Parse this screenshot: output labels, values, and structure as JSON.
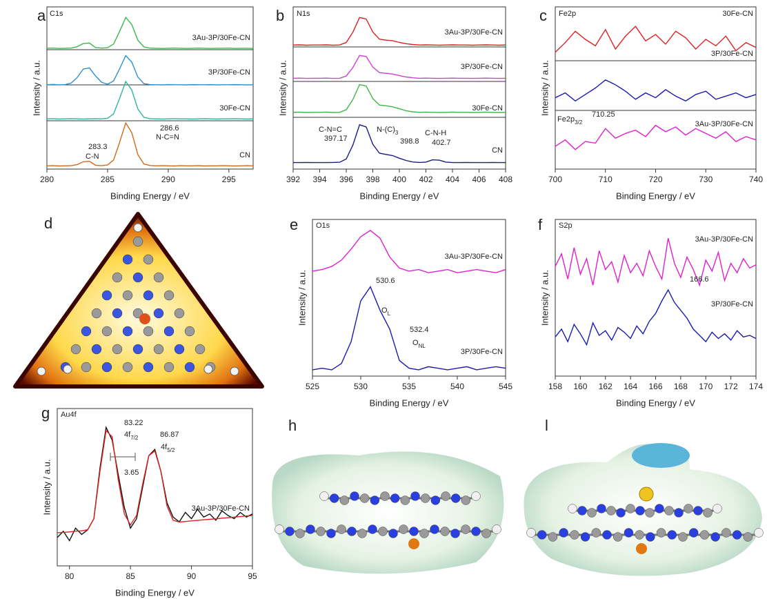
{
  "chart_data": [
    {
      "type": "line",
      "panel": "a",
      "xlabel": "Binding Energy / eV",
      "ylabel": "Intensity / a.u.",
      "x": [
        280,
        280.5,
        281,
        281.5,
        282,
        282.5,
        283,
        283.5,
        284,
        284.5,
        285,
        285.5,
        286,
        286.5,
        287,
        287.5,
        288,
        288.5,
        289,
        289.5,
        290,
        290.5,
        291,
        291.5,
        292,
        292.5,
        293,
        293.5,
        294,
        294.5,
        295,
        295.5,
        296,
        296.5,
        297
      ],
      "xlim": [
        280,
        297
      ],
      "xticks": [
        280,
        285,
        290,
        295
      ],
      "ylim": [
        0,
        100
      ],
      "series": [
        {
          "name": "3Au-3P/30Fe-CN",
          "color": "#3cb84a",
          "values": [
            74.5,
            74.6,
            74.4,
            74.5,
            74.6,
            75.5,
            77.4,
            77.7,
            75,
            74.6,
            74.8,
            77.1,
            85,
            93.5,
            89.1,
            79.4,
            75.3,
            74.6,
            74.5,
            74.4,
            74.5,
            74.6,
            74.5,
            74.4,
            74.5,
            74.6,
            74.5,
            74.4,
            74.5,
            74.5,
            74.6,
            74.4,
            74.5,
            74.5,
            74.4
          ]
        },
        {
          "name": "3P/30Fe-CN",
          "color": "#2a8fd6",
          "values": [
            52,
            52.2,
            51.9,
            52.1,
            53,
            56.5,
            61.7,
            62.4,
            57.5,
            53.6,
            52.3,
            54.4,
            61.9,
            70,
            65.9,
            56.7,
            52.7,
            52.1,
            52,
            51.9,
            52.1,
            52,
            52,
            51.9,
            52.1,
            52,
            52,
            52.1,
            51.9,
            52,
            52,
            52.1,
            52,
            51.9,
            52
          ]
        },
        {
          "name": "30Fe-CN",
          "color": "#2fb59a",
          "values": [
            31,
            31.1,
            30.9,
            31,
            31.1,
            31,
            30.9,
            31,
            31.1,
            31,
            31.3,
            34.1,
            43.7,
            54,
            48.7,
            37,
            31.9,
            31.1,
            31,
            30.9,
            31,
            31.1,
            31,
            31,
            30.9,
            31,
            31.1,
            31,
            30.9,
            31,
            31,
            31.1,
            31,
            30.9,
            31
          ]
        },
        {
          "name": "CN",
          "color": "#d2691e",
          "values": [
            2,
            2.1,
            1.9,
            2,
            2.1,
            2.8,
            4.5,
            4.8,
            2.4,
            2.1,
            2.5,
            5.6,
            16.6,
            28.5,
            22.4,
            8.9,
            3.1,
            2.2,
            2,
            2.1,
            2,
            1.9,
            2.1,
            2,
            2,
            2.1,
            1.9,
            2,
            2,
            2.1,
            2,
            1.9,
            2,
            2.1,
            2
          ]
        }
      ],
      "annotations": [
        "C1s",
        "286.6",
        "N-C=N",
        "283.3",
        "C-N"
      ]
    },
    {
      "type": "line",
      "panel": "b",
      "xlabel": "Binding Energy / eV",
      "ylabel": "Intensity / a.u.",
      "x": [
        392,
        392.5,
        393,
        393.5,
        394,
        394.5,
        395,
        395.5,
        396,
        396.5,
        397,
        397.5,
        398,
        398.5,
        399,
        399.5,
        400,
        400.5,
        401,
        401.5,
        402,
        402.5,
        403,
        403.5,
        404,
        404.5,
        405,
        405.5,
        406,
        406.5,
        407,
        407.5,
        408
      ],
      "xlim": [
        392,
        408
      ],
      "xticks": [
        392,
        394,
        396,
        398,
        400,
        402,
        404,
        406,
        408
      ],
      "ylim": [
        0,
        100
      ],
      "series": [
        {
          "name": "3Au-3P/30Fe-CN",
          "color": "#e02020",
          "values": [
            76.5,
            76.6,
            76.4,
            76.5,
            76.5,
            76.6,
            76.4,
            76.5,
            78.1,
            84.4,
            93.5,
            92.5,
            84.5,
            80.1,
            79.5,
            79.1,
            78.1,
            77.3,
            76.8,
            76.5,
            76.6,
            76.5,
            76.4,
            76.5,
            76.6,
            76.5,
            76.5,
            76.4,
            76.5,
            76.6,
            76.5,
            76.4,
            76.5
          ]
        },
        {
          "name": "3P/30Fe-CN",
          "color": "#d040d0",
          "values": [
            56,
            56.1,
            55.9,
            56,
            56,
            56.1,
            55.9,
            56,
            57.4,
            62.6,
            70.1,
            69.4,
            62.9,
            59.5,
            59,
            58.6,
            57.6,
            56.8,
            56.3,
            56,
            56.1,
            56,
            55.9,
            56,
            56.1,
            56,
            56,
            55.9,
            56,
            56.1,
            56,
            55.9,
            56
          ]
        },
        {
          "name": "30Fe-CN",
          "color": "#3cb84a",
          "values": [
            35,
            35.1,
            34.9,
            35,
            35,
            35.1,
            34.9,
            35,
            36.6,
            42.9,
            52.1,
            51.2,
            43.5,
            39.5,
            39,
            38.4,
            37.2,
            36,
            35.3,
            35,
            35.1,
            35,
            34.9,
            35,
            35.1,
            35,
            35,
            34.9,
            35,
            35.1,
            35,
            34.9,
            35
          ]
        },
        {
          "name": "CN",
          "color": "#1a1a8c",
          "values": [
            4,
            4,
            4.1,
            4,
            4,
            4,
            4.1,
            4.2,
            6.2,
            14.8,
            27.3,
            26,
            15.3,
            9.8,
            9,
            8.3,
            6.7,
            5.3,
            4.4,
            4.1,
            4.3,
            5.7,
            5.5,
            4.3,
            4,
            4,
            4.1,
            4,
            4,
            4,
            4.1,
            4,
            4
          ]
        }
      ],
      "annotations": [
        "N1s",
        "C-N=C",
        "397.17",
        {
          "text": "N-(C)",
          "sub": "3"
        },
        "398.8",
        "C-N-H",
        "402.7"
      ]
    },
    {
      "type": "line",
      "panel": "c",
      "xlabel": "Binding Energy / eV",
      "ylabel": "Intensity / a.u.",
      "x": [
        700,
        702,
        704,
        706,
        708,
        710,
        712,
        714,
        716,
        718,
        720,
        722,
        724,
        726,
        728,
        730,
        732,
        734,
        736,
        738,
        740
      ],
      "xlim": [
        700,
        740
      ],
      "xticks": [
        700,
        710,
        720,
        730,
        740
      ],
      "ylim": [
        0,
        100
      ],
      "series": [
        {
          "name": "30Fe-CN",
          "color": "#e02020",
          "values": [
            72,
            78,
            85,
            80,
            76,
            86,
            74,
            82,
            88,
            79,
            83,
            77,
            85,
            81,
            74,
            80,
            76,
            82,
            73,
            78,
            75
          ]
        },
        {
          "name": "3P/30Fe-CN",
          "color": "#1a1ab0",
          "values": [
            44,
            47,
            42,
            46,
            50,
            55,
            52,
            48,
            43,
            47,
            44,
            49,
            45,
            42,
            46,
            48,
            43,
            45,
            47,
            44,
            46
          ]
        },
        {
          "name": "3Au-3P/30Fe-CN",
          "color": "#e020d0",
          "values": [
            14,
            18,
            12,
            17,
            16,
            25,
            19,
            22,
            24,
            20,
            27,
            23,
            26,
            21,
            25,
            22,
            19,
            23,
            17,
            20,
            18
          ]
        }
      ],
      "annotations": [
        "Fe2p",
        {
          "text": "Fe2p",
          "sub": "3/2"
        },
        "710.25"
      ]
    },
    {
      "type": "line",
      "panel": "e",
      "xlabel": "Binding Energy / eV",
      "ylabel": "Intensity / a.u.",
      "x": [
        525,
        526,
        527,
        528,
        529,
        530,
        531,
        532,
        533,
        534,
        535,
        536,
        537,
        538,
        539,
        540,
        541,
        542,
        543,
        544,
        545
      ],
      "xlim": [
        525,
        545
      ],
      "xticks": [
        525,
        530,
        535,
        540,
        545
      ],
      "ylim": [
        0,
        100
      ],
      "series": [
        {
          "name": "3Au-3P/30Fe-CN",
          "color": "#e020d0",
          "values": [
            67,
            68,
            70,
            74,
            81,
            89,
            93,
            88,
            76,
            69,
            67,
            68,
            66,
            67,
            68,
            66,
            67,
            68,
            67,
            66,
            68
          ]
        },
        {
          "name": "3P/30Fe-CN",
          "color": "#1a1ab0",
          "values": [
            4,
            5,
            4,
            8,
            22,
            48,
            57,
            42,
            30,
            10,
            5,
            4,
            6,
            5,
            4,
            5,
            6,
            4,
            5,
            6,
            5
          ]
        }
      ],
      "annotations": [
        "O1s",
        "530.6",
        {
          "text": "O",
          "sub": "L"
        },
        "532.4",
        {
          "text": "O",
          "sub": "NL"
        }
      ]
    },
    {
      "type": "line",
      "panel": "f",
      "xlabel": "Binding Energy / eV",
      "ylabel": "Intensity / a.u.",
      "x": [
        158,
        158.5,
        159,
        159.5,
        160,
        160.5,
        161,
        161.5,
        162,
        162.5,
        163,
        163.5,
        164,
        164.5,
        165,
        165.5,
        166,
        166.5,
        167,
        167.5,
        168,
        168.5,
        169,
        169.5,
        170,
        170.5,
        171,
        171.5,
        172,
        172.5,
        173,
        173.5,
        174
      ],
      "xlim": [
        158,
        174
      ],
      "xticks": [
        158,
        160,
        162,
        164,
        166,
        168,
        170,
        172,
        174
      ],
      "ylim": [
        0,
        100
      ],
      "series": [
        {
          "name": "3Au-3P/30Fe-CN",
          "color": "#e020d0",
          "values": [
            70,
            78,
            62,
            82,
            65,
            75,
            58,
            80,
            68,
            73,
            60,
            77,
            66,
            72,
            64,
            80,
            70,
            62,
            88,
            72,
            63,
            76,
            68,
            58,
            74,
            67,
            79,
            61,
            72,
            66,
            75,
            69,
            71
          ]
        },
        {
          "name": "3P/30Fe-CN",
          "color": "#1a1ab0",
          "values": [
            25,
            30,
            22,
            33,
            27,
            20,
            34,
            26,
            29,
            23,
            31,
            28,
            24,
            32,
            27,
            35,
            40,
            48,
            55,
            47,
            42,
            37,
            30,
            26,
            22,
            28,
            24,
            27,
            23,
            29,
            25,
            26,
            24
          ]
        }
      ],
      "annotations": [
        "S2p",
        "166.6"
      ]
    },
    {
      "type": "line",
      "panel": "g",
      "xlabel": "Binding Energy / eV",
      "ylabel": "Intensity / a.u.",
      "x": [
        79,
        79.5,
        80,
        80.5,
        81,
        81.5,
        82,
        82.5,
        83,
        83.5,
        84,
        84.5,
        85,
        85.5,
        86,
        86.5,
        87,
        87.5,
        88,
        88.5,
        89,
        89.5,
        90,
        90.5,
        91,
        91.5,
        92,
        92.5,
        93,
        93.5,
        94,
        94.5,
        95
      ],
      "xlim": [
        79,
        95
      ],
      "xticks": [
        80,
        85,
        90,
        95
      ],
      "ylim": [
        0,
        100
      ],
      "series": [
        {
          "name": "3Au-3P/30Fe-CN",
          "color": "#111111",
          "values": [
            18,
            22,
            16,
            24,
            20,
            23,
            30,
            62,
            88,
            80,
            58,
            37,
            24,
            30,
            50,
            70,
            74,
            60,
            40,
            31,
            28,
            34,
            30,
            36,
            31,
            33,
            29,
            35,
            32,
            30,
            34,
            31,
            33
          ]
        },
        {
          "color": "#e02020",
          "values": [
            21,
            21.3,
            21.6,
            22,
            22.3,
            23,
            30,
            60,
            86,
            82,
            55,
            33,
            26,
            32,
            52,
            70,
            73,
            60,
            38,
            29,
            27.9,
            28.2,
            28.6,
            28.9,
            29.3,
            29.6,
            29.9,
            30.3,
            30.6,
            31,
            31.3,
            31.7,
            32
          ]
        }
      ],
      "annotations": [
        "Au4f",
        "83.22",
        {
          "text": "4f",
          "sub": "7/2"
        },
        "86.87",
        {
          "text": "4f",
          "sub": "5/2"
        },
        "3.65"
      ]
    }
  ],
  "images": [
    {
      "label": "d"
    },
    {
      "label": "h"
    },
    {
      "label": "l"
    }
  ]
}
